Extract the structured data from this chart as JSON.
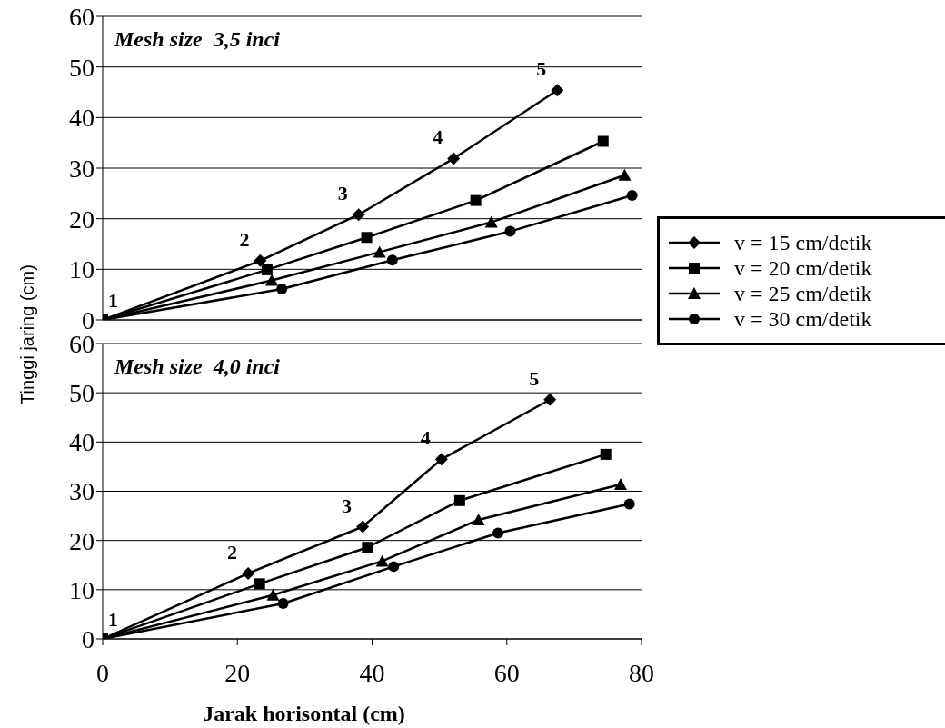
{
  "chart_data": [
    {
      "type": "line",
      "title": "Mesh size  3,5 inci",
      "ylabel": "Tinggi jaring (cm)",
      "xlim": [
        0,
        80
      ],
      "xticks": [
        0,
        20,
        40,
        60,
        80
      ],
      "ylim": [
        0,
        60
      ],
      "yticks": [
        0,
        10,
        20,
        30,
        40,
        50,
        60
      ],
      "grid": "y",
      "tick_labels": "y",
      "legend": "right",
      "annotations": [
        {
          "text": "1",
          "x": 0,
          "y": 0
        },
        {
          "text": "2",
          "x": 23.4,
          "y": 11.7
        },
        {
          "text": "3",
          "x": 38.0,
          "y": 20.8
        },
        {
          "text": "4",
          "x": 52.1,
          "y": 31.9
        },
        {
          "text": "5",
          "x": 67.5,
          "y": 45.4
        }
      ],
      "series": [
        {
          "name": "v = 15 cm/detik",
          "color": "#000000",
          "marker": "diamond",
          "x": [
            0,
            23.4,
            38.0,
            52.1,
            67.5
          ],
          "values": [
            0,
            11.7,
            20.8,
            31.9,
            45.4
          ]
        },
        {
          "name": "v = 20 cm/detik",
          "color": "#000000",
          "marker": "square",
          "x": [
            0,
            24.4,
            39.2,
            55.4,
            74.3
          ],
          "values": [
            0,
            9.9,
            16.3,
            23.6,
            35.3
          ]
        },
        {
          "name": "v = 25 cm/detik",
          "color": "#000000",
          "marker": "triangle",
          "x": [
            0,
            25.1,
            41.1,
            57.7,
            77.5
          ],
          "values": [
            0,
            7.8,
            13.4,
            19.3,
            28.6
          ]
        },
        {
          "name": "v = 30 cm/detik",
          "color": "#000000",
          "marker": "circle",
          "x": [
            0,
            26.6,
            43.0,
            60.5,
            78.6
          ],
          "values": [
            0,
            6.1,
            11.8,
            17.5,
            24.6
          ]
        }
      ]
    },
    {
      "type": "line",
      "title": "Mesh size  4,0 inci",
      "xlabel": "Jarak horisontal (cm)",
      "xlim": [
        0,
        80
      ],
      "xticks": [
        0,
        20,
        40,
        60,
        80
      ],
      "ylim": [
        0,
        60
      ],
      "yticks": [
        0,
        10,
        20,
        30,
        40,
        50,
        60
      ],
      "grid": "y",
      "annotations": [
        {
          "text": "1",
          "x": 0,
          "y": 0
        },
        {
          "text": "2",
          "x": 21.6,
          "y": 13.3
        },
        {
          "text": "3",
          "x": 38.6,
          "y": 22.8
        },
        {
          "text": "4",
          "x": 50.3,
          "y": 36.5
        },
        {
          "text": "5",
          "x": 66.4,
          "y": 48.6
        }
      ],
      "series": [
        {
          "color": "#000000",
          "marker": "diamond",
          "x": [
            0,
            21.6,
            38.6,
            50.3,
            66.4
          ],
          "values": [
            0,
            13.3,
            22.8,
            36.5,
            48.6
          ]
        },
        {
          "color": "#000000",
          "marker": "square",
          "x": [
            0,
            23.3,
            39.3,
            53.0,
            74.7
          ],
          "values": [
            0,
            11.2,
            18.6,
            28.1,
            37.5
          ]
        },
        {
          "color": "#000000",
          "marker": "triangle",
          "x": [
            0,
            25.3,
            41.5,
            55.8,
            76.9
          ],
          "values": [
            0,
            8.9,
            15.8,
            24.2,
            31.4
          ]
        },
        {
          "color": "#000000",
          "marker": "circle",
          "x": [
            0,
            26.8,
            43.2,
            58.7,
            78.2
          ],
          "values": [
            0,
            7.2,
            14.7,
            21.5,
            27.4
          ]
        }
      ]
    }
  ]
}
